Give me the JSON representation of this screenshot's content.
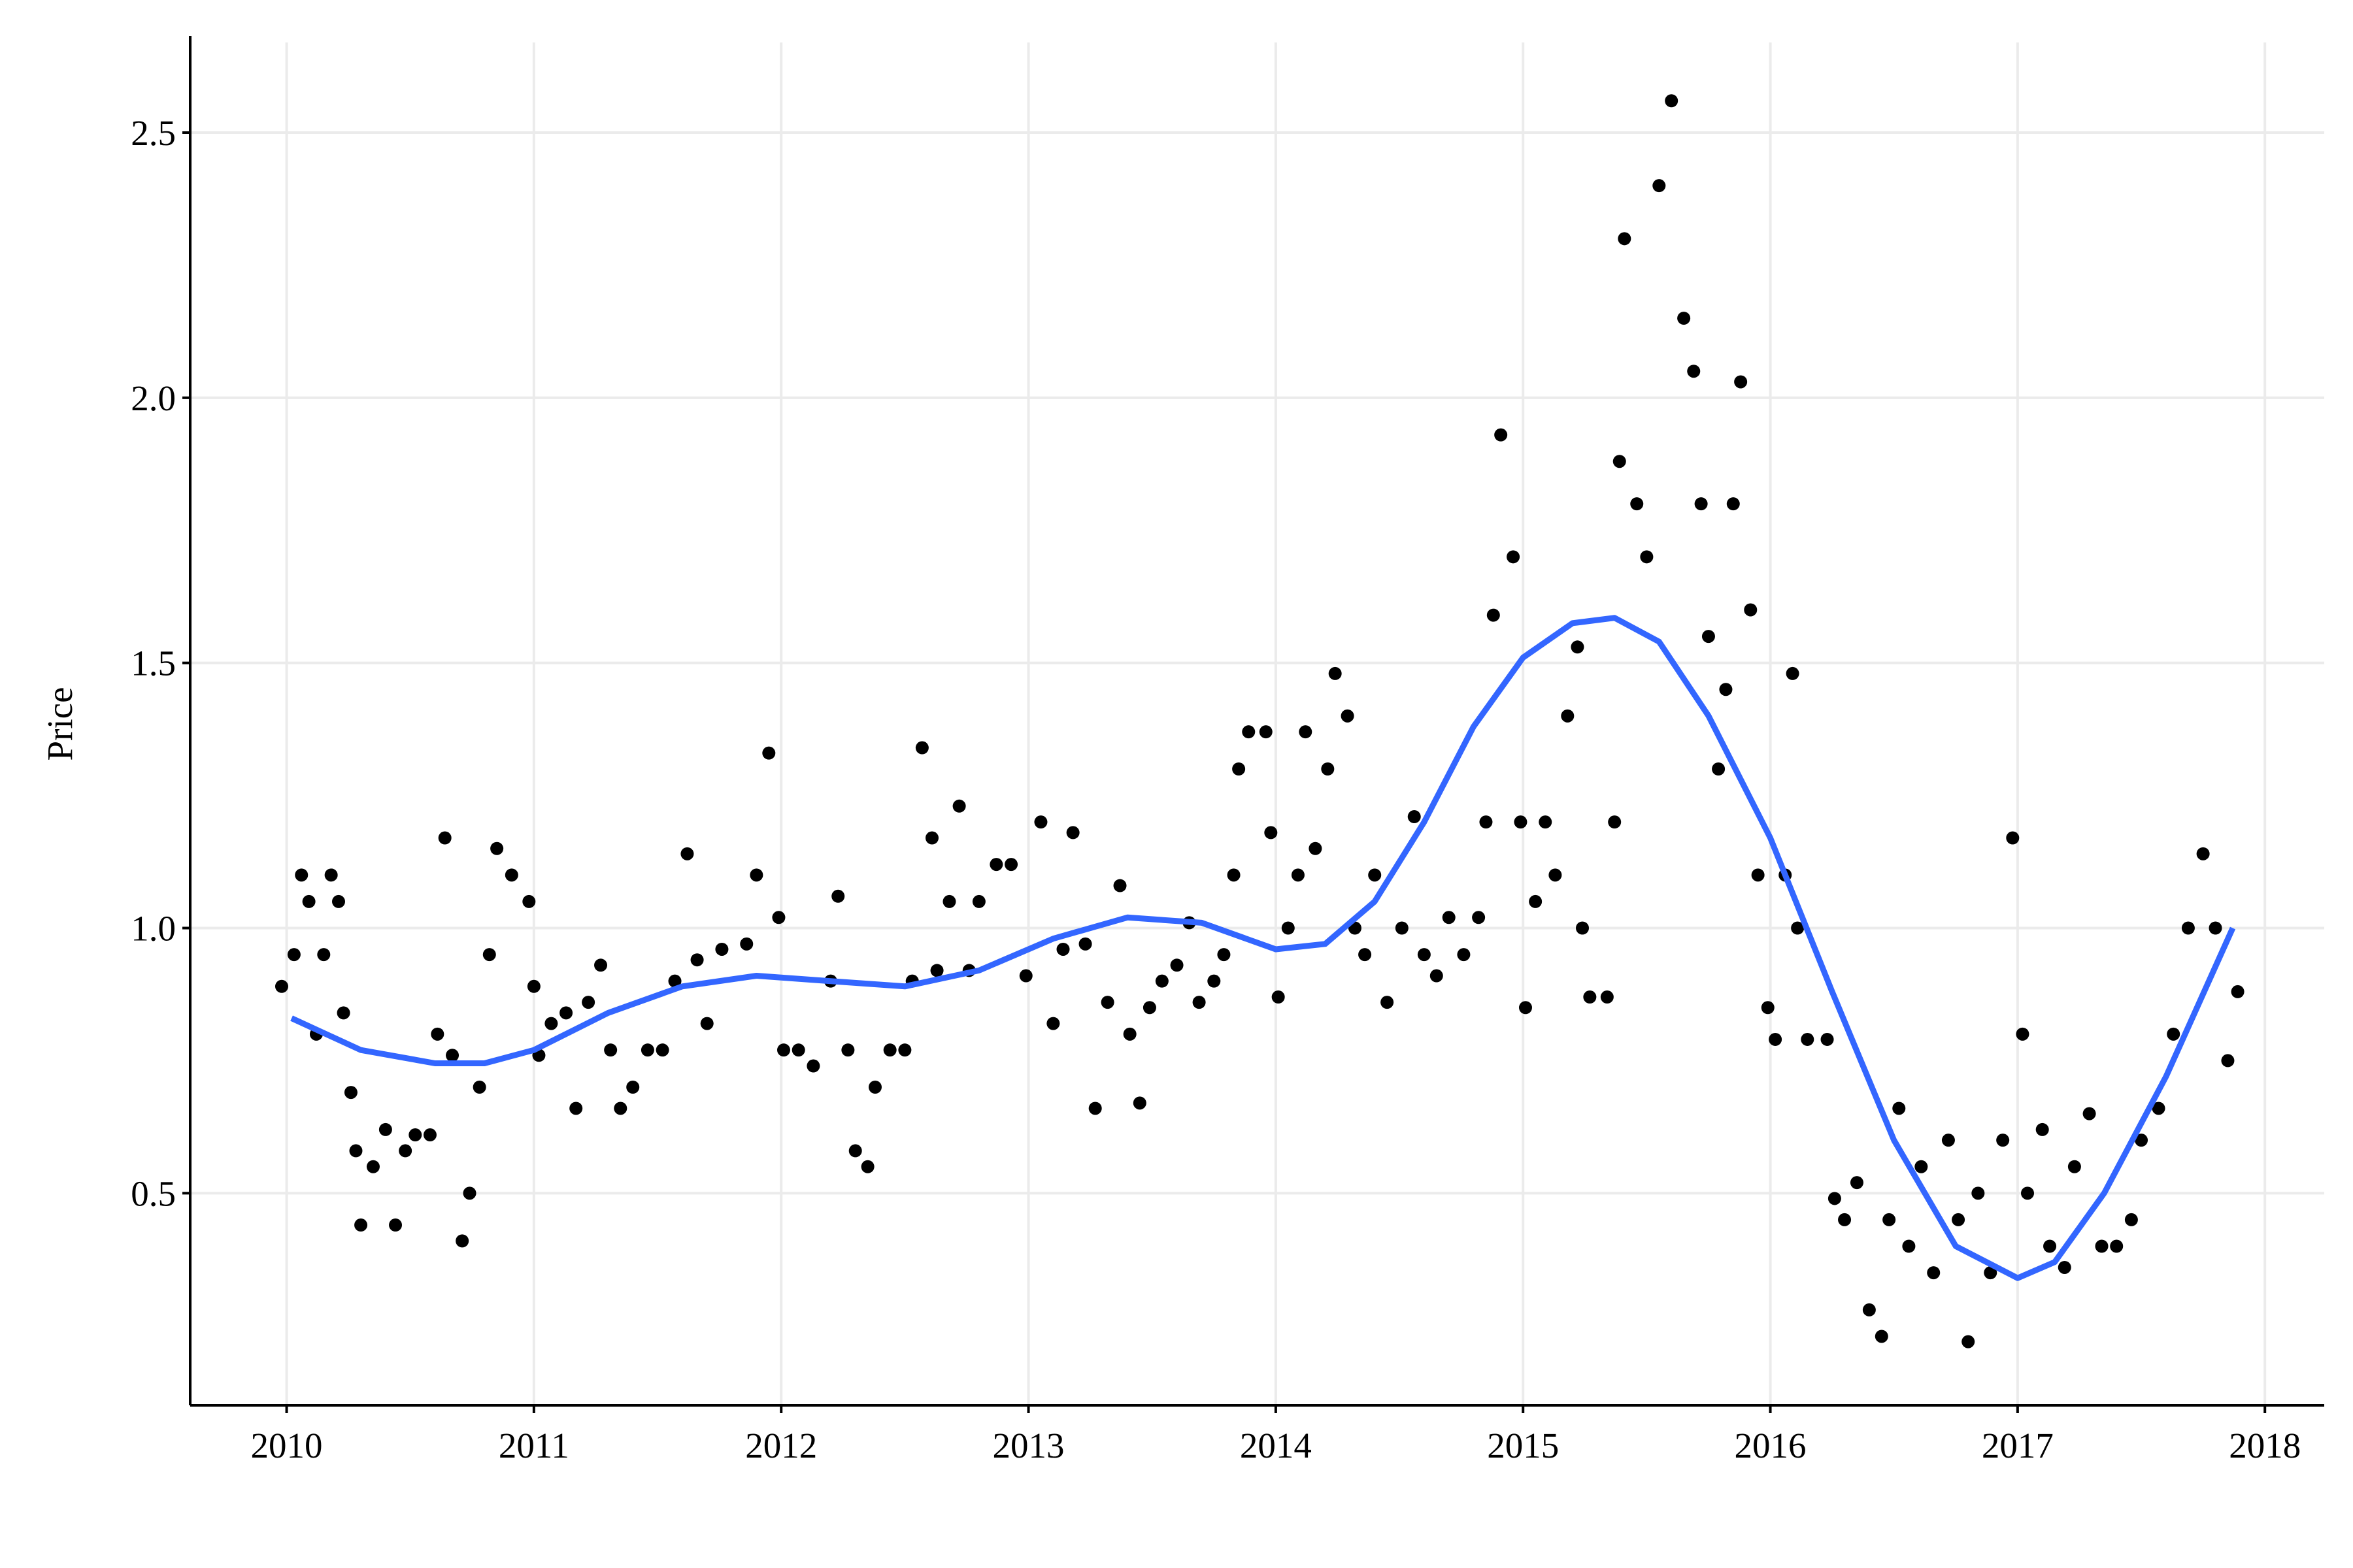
{
  "chart_data": {
    "type": "scatter",
    "y_label": "Price",
    "xlim": [
      2009.61,
      2018.24
    ],
    "ylim": [
      0.1,
      2.67
    ],
    "xticks": [
      2010,
      2011,
      2012,
      2013,
      2014,
      2015,
      2016,
      2017,
      2018
    ],
    "yticks": [
      0.5,
      {
        "value": 1,
        "label": "1.0"
      },
      1.5,
      {
        "value": 2,
        "label": "2.0"
      },
      2.5
    ],
    "grid": true,
    "series": [
      {
        "type": "scatter",
        "color": "#000000",
        "x": [
          2009.98,
          2010.03,
          2010.06,
          2010.09,
          2010.12,
          2010.15,
          2010.18,
          2010.21,
          2010.23,
          2010.26,
          2010.28,
          2010.3,
          2010.35,
          2010.4,
          2010.44,
          2010.48,
          2010.52,
          2010.58,
          2010.61,
          2010.64,
          2010.67,
          2010.71,
          2010.74,
          2010.78,
          2010.82,
          2010.85,
          2010.91,
          2010.98,
          2011.0,
          2011.02,
          2011.07,
          2011.13,
          2011.17,
          2011.22,
          2011.27,
          2011.31,
          2011.35,
          2011.4,
          2011.46,
          2011.52,
          2011.57,
          2011.62,
          2011.66,
          2011.7,
          2011.76,
          2011.86,
          2011.9,
          2011.95,
          2011.99,
          2012.01,
          2012.07,
          2012.13,
          2012.2,
          2012.23,
          2012.27,
          2012.3,
          2012.35,
          2012.38,
          2012.44,
          2012.5,
          2012.53,
          2012.57,
          2012.61,
          2012.63,
          2012.68,
          2012.72,
          2012.76,
          2012.8,
          2012.87,
          2012.93,
          2012.99,
          2013.05,
          2013.1,
          2013.14,
          2013.18,
          2013.23,
          2013.27,
          2013.32,
          2013.37,
          2013.41,
          2013.45,
          2013.49,
          2013.54,
          2013.6,
          2013.65,
          2013.69,
          2013.75,
          2013.79,
          2013.83,
          2013.85,
          2013.89,
          2013.96,
          2013.98,
          2014.01,
          2014.05,
          2014.09,
          2014.12,
          2014.16,
          2014.21,
          2014.24,
          2014.29,
          2014.32,
          2014.36,
          2014.4,
          2014.45,
          2014.51,
          2014.56,
          2014.6,
          2014.65,
          2014.7,
          2014.76,
          2014.82,
          2014.85,
          2014.88,
          2014.91,
          2014.96,
          2014.99,
          2015.01,
          2015.05,
          2015.09,
          2015.13,
          2015.18,
          2015.22,
          2015.24,
          2015.27,
          2015.34,
          2015.37,
          2015.39,
          2015.41,
          2015.46,
          2015.5,
          2015.55,
          2015.6,
          2015.65,
          2015.69,
          2015.72,
          2015.75,
          2015.79,
          2015.82,
          2015.85,
          2015.88,
          2015.92,
          2015.95,
          2015.99,
          2016.02,
          2016.06,
          2016.09,
          2016.11,
          2016.15,
          2016.23,
          2016.26,
          2016.3,
          2016.35,
          2016.4,
          2016.45,
          2016.48,
          2016.52,
          2016.56,
          2016.61,
          2016.66,
          2016.72,
          2016.76,
          2016.8,
          2016.84,
          2016.89,
          2016.94,
          2016.98,
          2017.02,
          2017.04,
          2017.1,
          2017.13,
          2017.19,
          2017.23,
          2017.29,
          2017.34,
          2017.4,
          2017.46,
          2017.5,
          2017.57,
          2017.63,
          2017.69,
          2017.75,
          2017.8,
          2017.85,
          2017.89
        ],
        "values": [
          0.89,
          0.95,
          1.1,
          1.05,
          0.8,
          0.95,
          1.1,
          1.05,
          0.84,
          0.69,
          0.58,
          0.44,
          0.55,
          0.62,
          0.44,
          0.58,
          0.61,
          0.61,
          0.8,
          1.17,
          0.76,
          0.41,
          0.5,
          0.7,
          0.95,
          1.15,
          1.1,
          1.05,
          0.89,
          0.76,
          0.82,
          0.84,
          0.66,
          0.86,
          0.93,
          0.77,
          0.66,
          0.7,
          0.77,
          0.77,
          0.9,
          1.14,
          0.94,
          0.82,
          0.96,
          0.97,
          1.1,
          1.33,
          1.02,
          0.77,
          0.77,
          0.74,
          0.9,
          1.06,
          0.77,
          0.58,
          0.55,
          0.7,
          0.77,
          0.77,
          0.9,
          1.34,
          1.17,
          0.92,
          1.05,
          1.23,
          0.92,
          1.05,
          1.12,
          1.12,
          0.91,
          1.2,
          0.82,
          0.96,
          1.18,
          0.97,
          0.66,
          0.86,
          1.08,
          0.8,
          0.67,
          0.85,
          0.9,
          0.93,
          1.01,
          0.86,
          0.9,
          0.95,
          1.1,
          1.3,
          1.37,
          1.37,
          1.18,
          0.87,
          1.0,
          1.1,
          1.37,
          1.15,
          1.3,
          1.48,
          1.4,
          1.0,
          0.95,
          1.1,
          0.86,
          1.0,
          1.21,
          0.95,
          0.91,
          1.02,
          0.95,
          1.02,
          1.2,
          1.59,
          1.93,
          1.7,
          1.2,
          0.85,
          1.05,
          1.2,
          1.1,
          1.4,
          1.53,
          1.0,
          0.87,
          0.87,
          1.2,
          1.88,
          2.3,
          1.8,
          1.7,
          2.4,
          2.56,
          2.15,
          2.05,
          1.8,
          1.55,
          1.3,
          1.45,
          1.8,
          2.03,
          1.6,
          1.1,
          0.85,
          0.79,
          1.1,
          1.48,
          1.0,
          0.79,
          0.79,
          0.49,
          0.45,
          0.52,
          0.28,
          0.23,
          0.45,
          0.66,
          0.4,
          0.55,
          0.35,
          0.6,
          0.45,
          0.22,
          0.5,
          0.35,
          0.6,
          1.17,
          0.8,
          0.5,
          0.62,
          0.4,
          0.36,
          0.55,
          0.65,
          0.4,
          0.4,
          0.45,
          0.6,
          0.66,
          0.8,
          1.0,
          1.14,
          1.0,
          0.75,
          0.88
        ]
      },
      {
        "type": "line",
        "color": "#3366ff",
        "x": [
          2010.02,
          2010.3,
          2010.6,
          2010.8,
          2011.0,
          2011.3,
          2011.6,
          2011.9,
          2012.2,
          2012.5,
          2012.8,
          2013.1,
          2013.4,
          2013.7,
          2014.0,
          2014.2,
          2014.4,
          2014.6,
          2014.8,
          2015.0,
          2015.2,
          2015.37,
          2015.55,
          2015.75,
          2016.0,
          2016.25,
          2016.5,
          2016.75,
          2017.0,
          2017.15,
          2017.35,
          2017.6,
          2017.87
        ],
        "values": [
          0.83,
          0.77,
          0.745,
          0.745,
          0.77,
          0.84,
          0.89,
          0.91,
          0.9,
          0.89,
          0.92,
          0.98,
          1.02,
          1.01,
          0.96,
          0.97,
          1.05,
          1.2,
          1.38,
          1.51,
          1.575,
          1.585,
          1.54,
          1.4,
          1.17,
          0.88,
          0.6,
          0.4,
          0.34,
          0.37,
          0.5,
          0.72,
          1.0
        ]
      }
    ]
  }
}
